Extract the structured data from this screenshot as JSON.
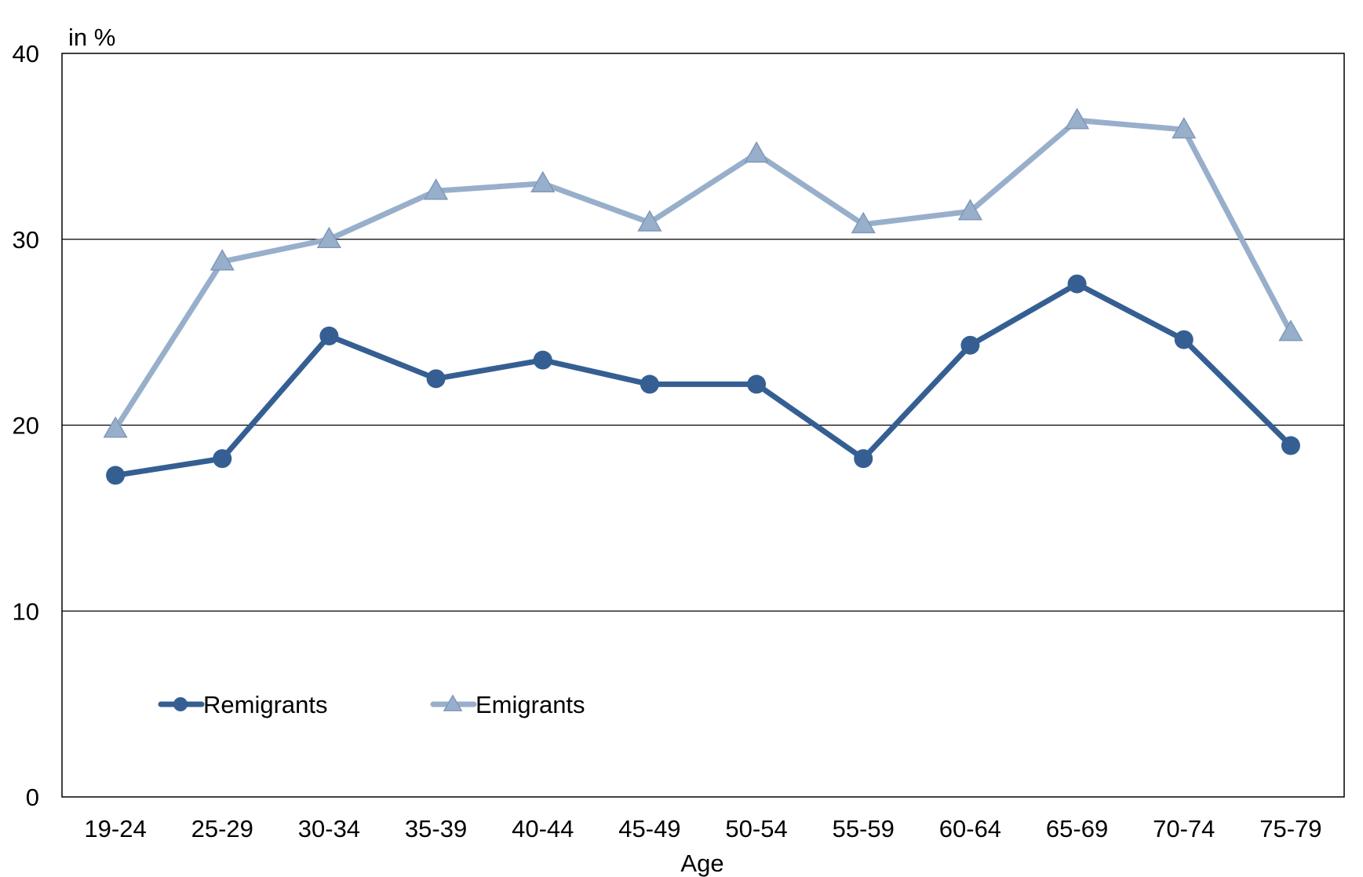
{
  "chart_data": {
    "type": "line",
    "ylabel": "in %",
    "xlabel": "Age",
    "categories": [
      "19-24",
      "25-29",
      "30-34",
      "35-39",
      "40-44",
      "45-49",
      "50-54",
      "55-59",
      "60-64",
      "65-69",
      "70-74",
      "75-79"
    ],
    "ylim": [
      0,
      40
    ],
    "yticks": [
      0,
      10,
      20,
      30,
      40
    ],
    "grid": true,
    "legend_position": "bottom-left",
    "series": [
      {
        "name": "Remigrants",
        "color": "#355f93",
        "marker": "circle",
        "values": [
          17.3,
          18.2,
          24.8,
          22.5,
          23.5,
          22.2,
          22.2,
          18.2,
          24.3,
          27.6,
          24.6,
          18.9
        ]
      },
      {
        "name": "Emigrants",
        "color": "#98afcb",
        "marker": "triangle",
        "values": [
          19.8,
          28.8,
          30.0,
          32.6,
          33.0,
          30.9,
          34.6,
          30.8,
          31.5,
          36.4,
          35.9,
          25.0
        ]
      }
    ]
  }
}
